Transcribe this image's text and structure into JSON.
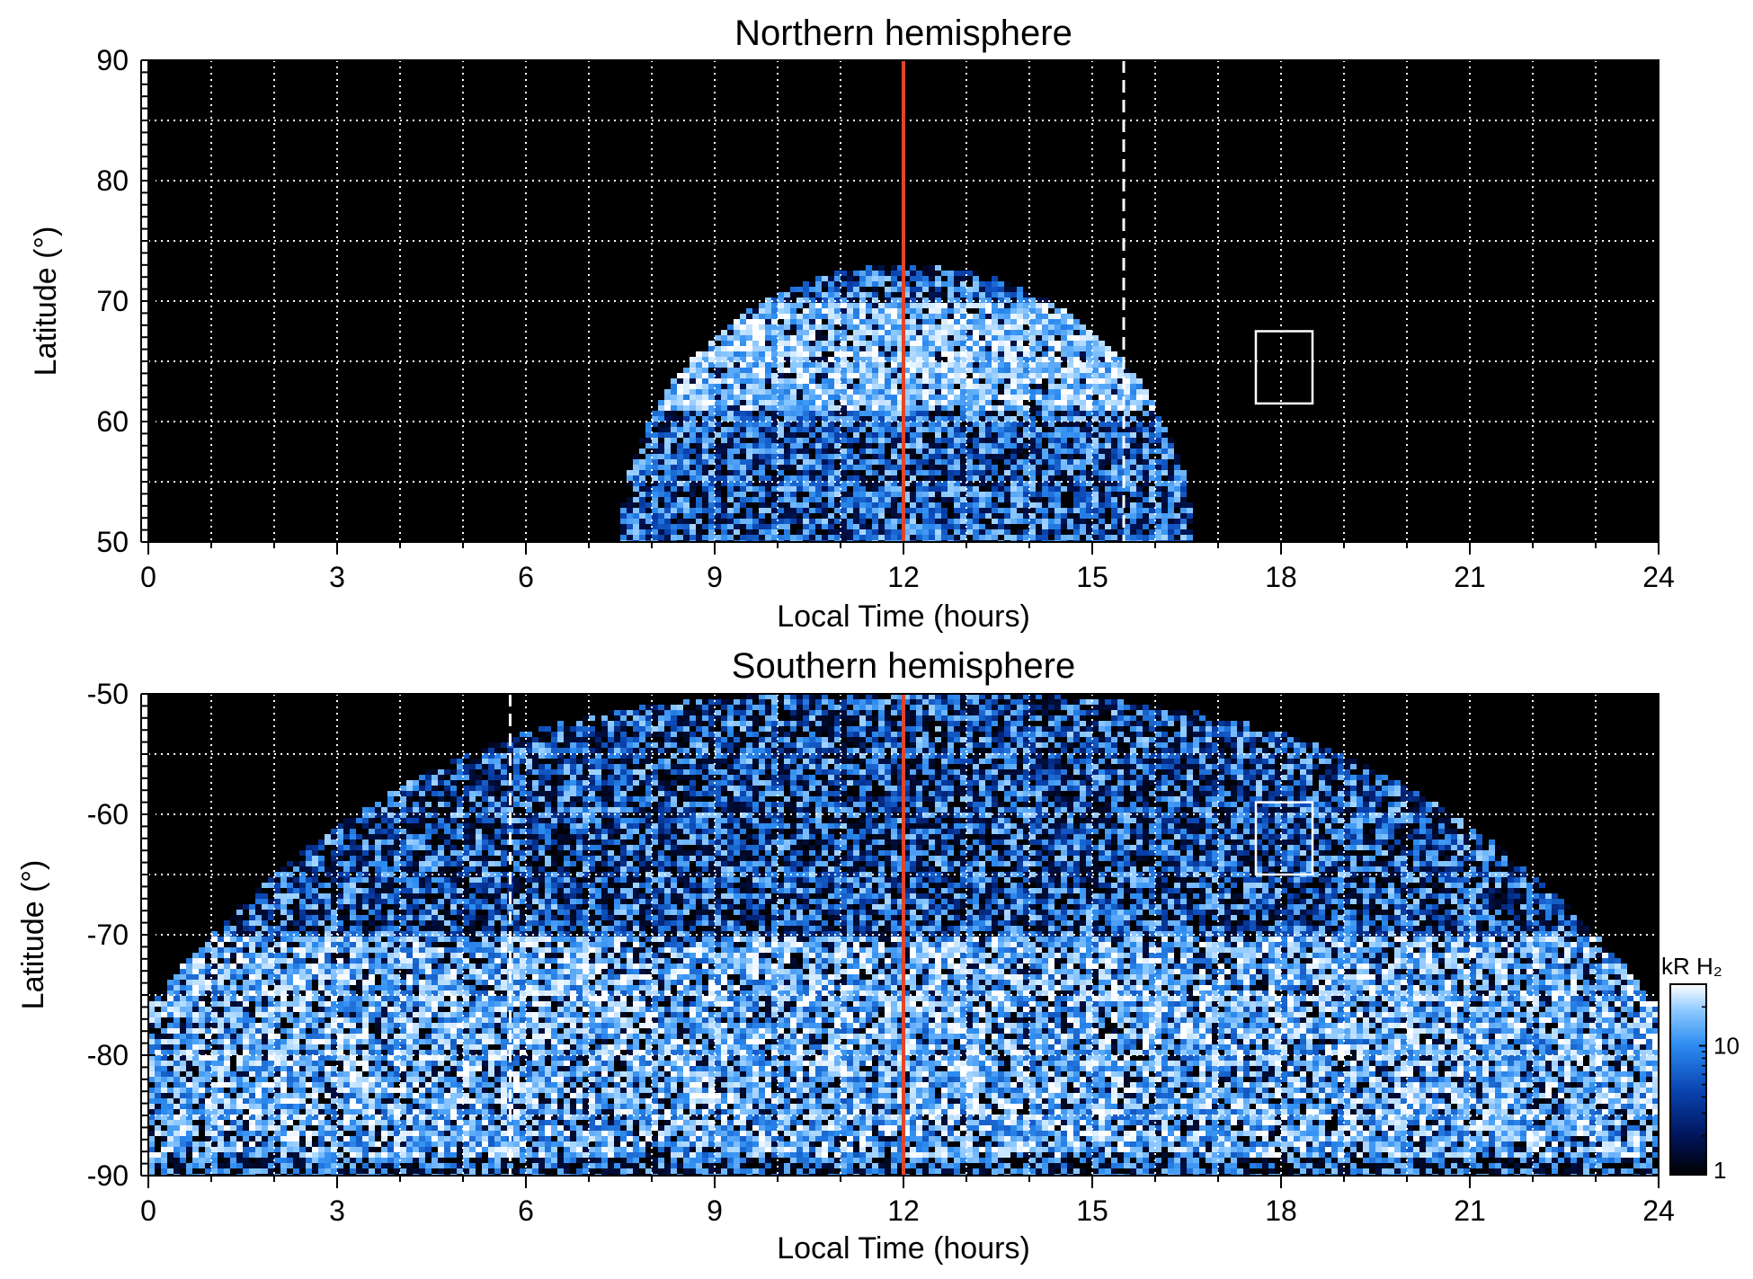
{
  "chart_data": [
    {
      "type": "heatmap",
      "title": "Northern hemisphere",
      "xlabel": "Local Time (hours)",
      "ylabel": "Latitude (°)",
      "xlim": [
        0,
        24
      ],
      "ylim": [
        50,
        90
      ],
      "x_ticks": [
        0,
        3,
        6,
        9,
        12,
        15,
        18,
        21,
        24
      ],
      "y_ticks": [
        50,
        60,
        70,
        80,
        90
      ],
      "x_tick_labels": [
        "0",
        "3",
        "6",
        "9",
        "12",
        "15",
        "18",
        "21",
        "24"
      ],
      "y_tick_labels": [
        "50",
        "60",
        "70",
        "80",
        "90"
      ],
      "grid": true,
      "grid_x_step_hours": 1,
      "grid_y_step_deg": 5,
      "background": "#000000",
      "emission_region": {
        "lt_range": [
          7.5,
          16.6
        ],
        "peak_lat": 73,
        "bright_band_lat": [
          61,
          70
        ]
      },
      "annotations": [
        {
          "kind": "vertical-line",
          "x": 12,
          "style": "solid",
          "color": "#e0462a"
        },
        {
          "kind": "vertical-line",
          "x": 15.5,
          "style": "dashed",
          "color": "#ffffff"
        },
        {
          "kind": "box",
          "x": [
            17.6,
            18.5
          ],
          "y": [
            61.5,
            67.5
          ],
          "color": "#ffffff"
        }
      ]
    },
    {
      "type": "heatmap",
      "title": "Southern hemisphere",
      "xlabel": "Local Time (hours)",
      "ylabel": "Latitude (°)",
      "xlim": [
        0,
        24
      ],
      "ylim": [
        -90,
        -50
      ],
      "x_ticks": [
        0,
        3,
        6,
        9,
        12,
        15,
        18,
        21,
        24
      ],
      "y_ticks": [
        -90,
        -80,
        -70,
        -60,
        -50
      ],
      "x_tick_labels": [
        "0",
        "3",
        "6",
        "9",
        "12",
        "15",
        "18",
        "21",
        "24"
      ],
      "y_tick_labels": [
        "-90",
        "-80",
        "-70",
        "-60",
        "-50"
      ],
      "grid": true,
      "grid_x_step_hours": 1,
      "grid_y_step_deg": 5,
      "background": "#000000",
      "emission_region": {
        "lt_range": [
          0,
          24
        ],
        "edge_lat": -75,
        "bright_arcs_lat": [
          -90,
          -72
        ]
      },
      "annotations": [
        {
          "kind": "vertical-line",
          "x": 12,
          "style": "solid",
          "color": "#e0462a"
        },
        {
          "kind": "vertical-line",
          "x": 5.75,
          "style": "dashed",
          "color": "#ffffff"
        },
        {
          "kind": "box",
          "x": [
            17.6,
            18.5
          ],
          "y": [
            -65,
            -59
          ],
          "color": "#ffffff"
        }
      ],
      "colorbar": {
        "label": "kR H₂",
        "scale": "log",
        "range": [
          1,
          30
        ],
        "ticks": [
          1,
          10
        ],
        "tick_labels": [
          "1",
          "10"
        ],
        "colors": [
          "#000000",
          "#00145a",
          "#0a46b4",
          "#2d8cf0",
          "#8cc8ff",
          "#ffffff"
        ]
      }
    }
  ]
}
